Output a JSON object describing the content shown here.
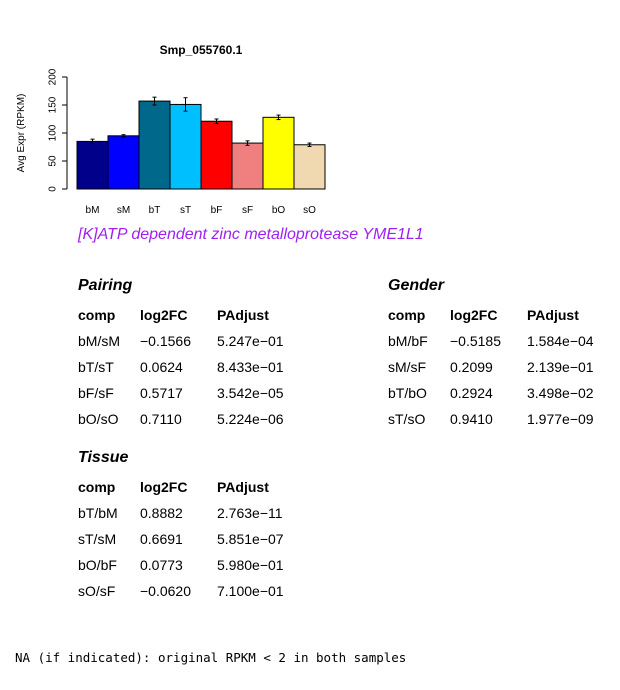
{
  "chart_data": {
    "type": "bar",
    "title": "Smp_055760.1",
    "ylabel": "Avg Expr (RPKM)",
    "xlabel": "",
    "categories": [
      "bM",
      "sM",
      "bT",
      "sT",
      "bF",
      "sF",
      "bO",
      "sO"
    ],
    "values": [
      85,
      95,
      157,
      151,
      121,
      82,
      128,
      79
    ],
    "errors": [
      4,
      2,
      7,
      12,
      4,
      4,
      4,
      3
    ],
    "colors": [
      "#00008b",
      "#0000ff",
      "#00688b",
      "#00bfff",
      "#ff0000",
      "#f08080",
      "#ffff00",
      "#f0d9b0"
    ],
    "ylim": [
      0,
      200
    ],
    "yticks": [
      "0",
      "50",
      "100",
      "150",
      "200"
    ],
    "grid": false
  },
  "description": "[K]ATP dependent zinc metalloprotease YME1L1",
  "tables": {
    "pairing": {
      "title": "Pairing",
      "headers": [
        "comp",
        "log2FC",
        "PAdjust"
      ],
      "rows": [
        [
          "bM/sM",
          "−0.1566",
          "5.247e−01"
        ],
        [
          "bT/sT",
          "0.0624",
          "8.433e−01"
        ],
        [
          "bF/sF",
          "0.5717",
          "3.542e−05"
        ],
        [
          "bO/sO",
          "0.7110",
          "5.224e−06"
        ]
      ]
    },
    "gender": {
      "title": "Gender",
      "headers": [
        "comp",
        "log2FC",
        "PAdjust"
      ],
      "rows": [
        [
          "bM/bF",
          "−0.5185",
          "1.584e−04"
        ],
        [
          "sM/sF",
          "0.2099",
          "2.139e−01"
        ],
        [
          "bT/bO",
          "0.2924",
          "3.498e−02"
        ],
        [
          "sT/sO",
          "0.9410",
          "1.977e−09"
        ]
      ]
    },
    "tissue": {
      "title": "Tissue",
      "headers": [
        "comp",
        "log2FC",
        "PAdjust"
      ],
      "rows": [
        [
          "bT/bM",
          "0.8882",
          "2.763e−11"
        ],
        [
          "sT/sM",
          "0.6691",
          "5.851e−07"
        ],
        [
          "bO/bF",
          "0.0773",
          "5.980e−01"
        ],
        [
          "sO/sF",
          "−0.0620",
          "7.100e−01"
        ]
      ]
    }
  },
  "footnote": "NA (if indicated): original RPKM < 2 in both samples"
}
